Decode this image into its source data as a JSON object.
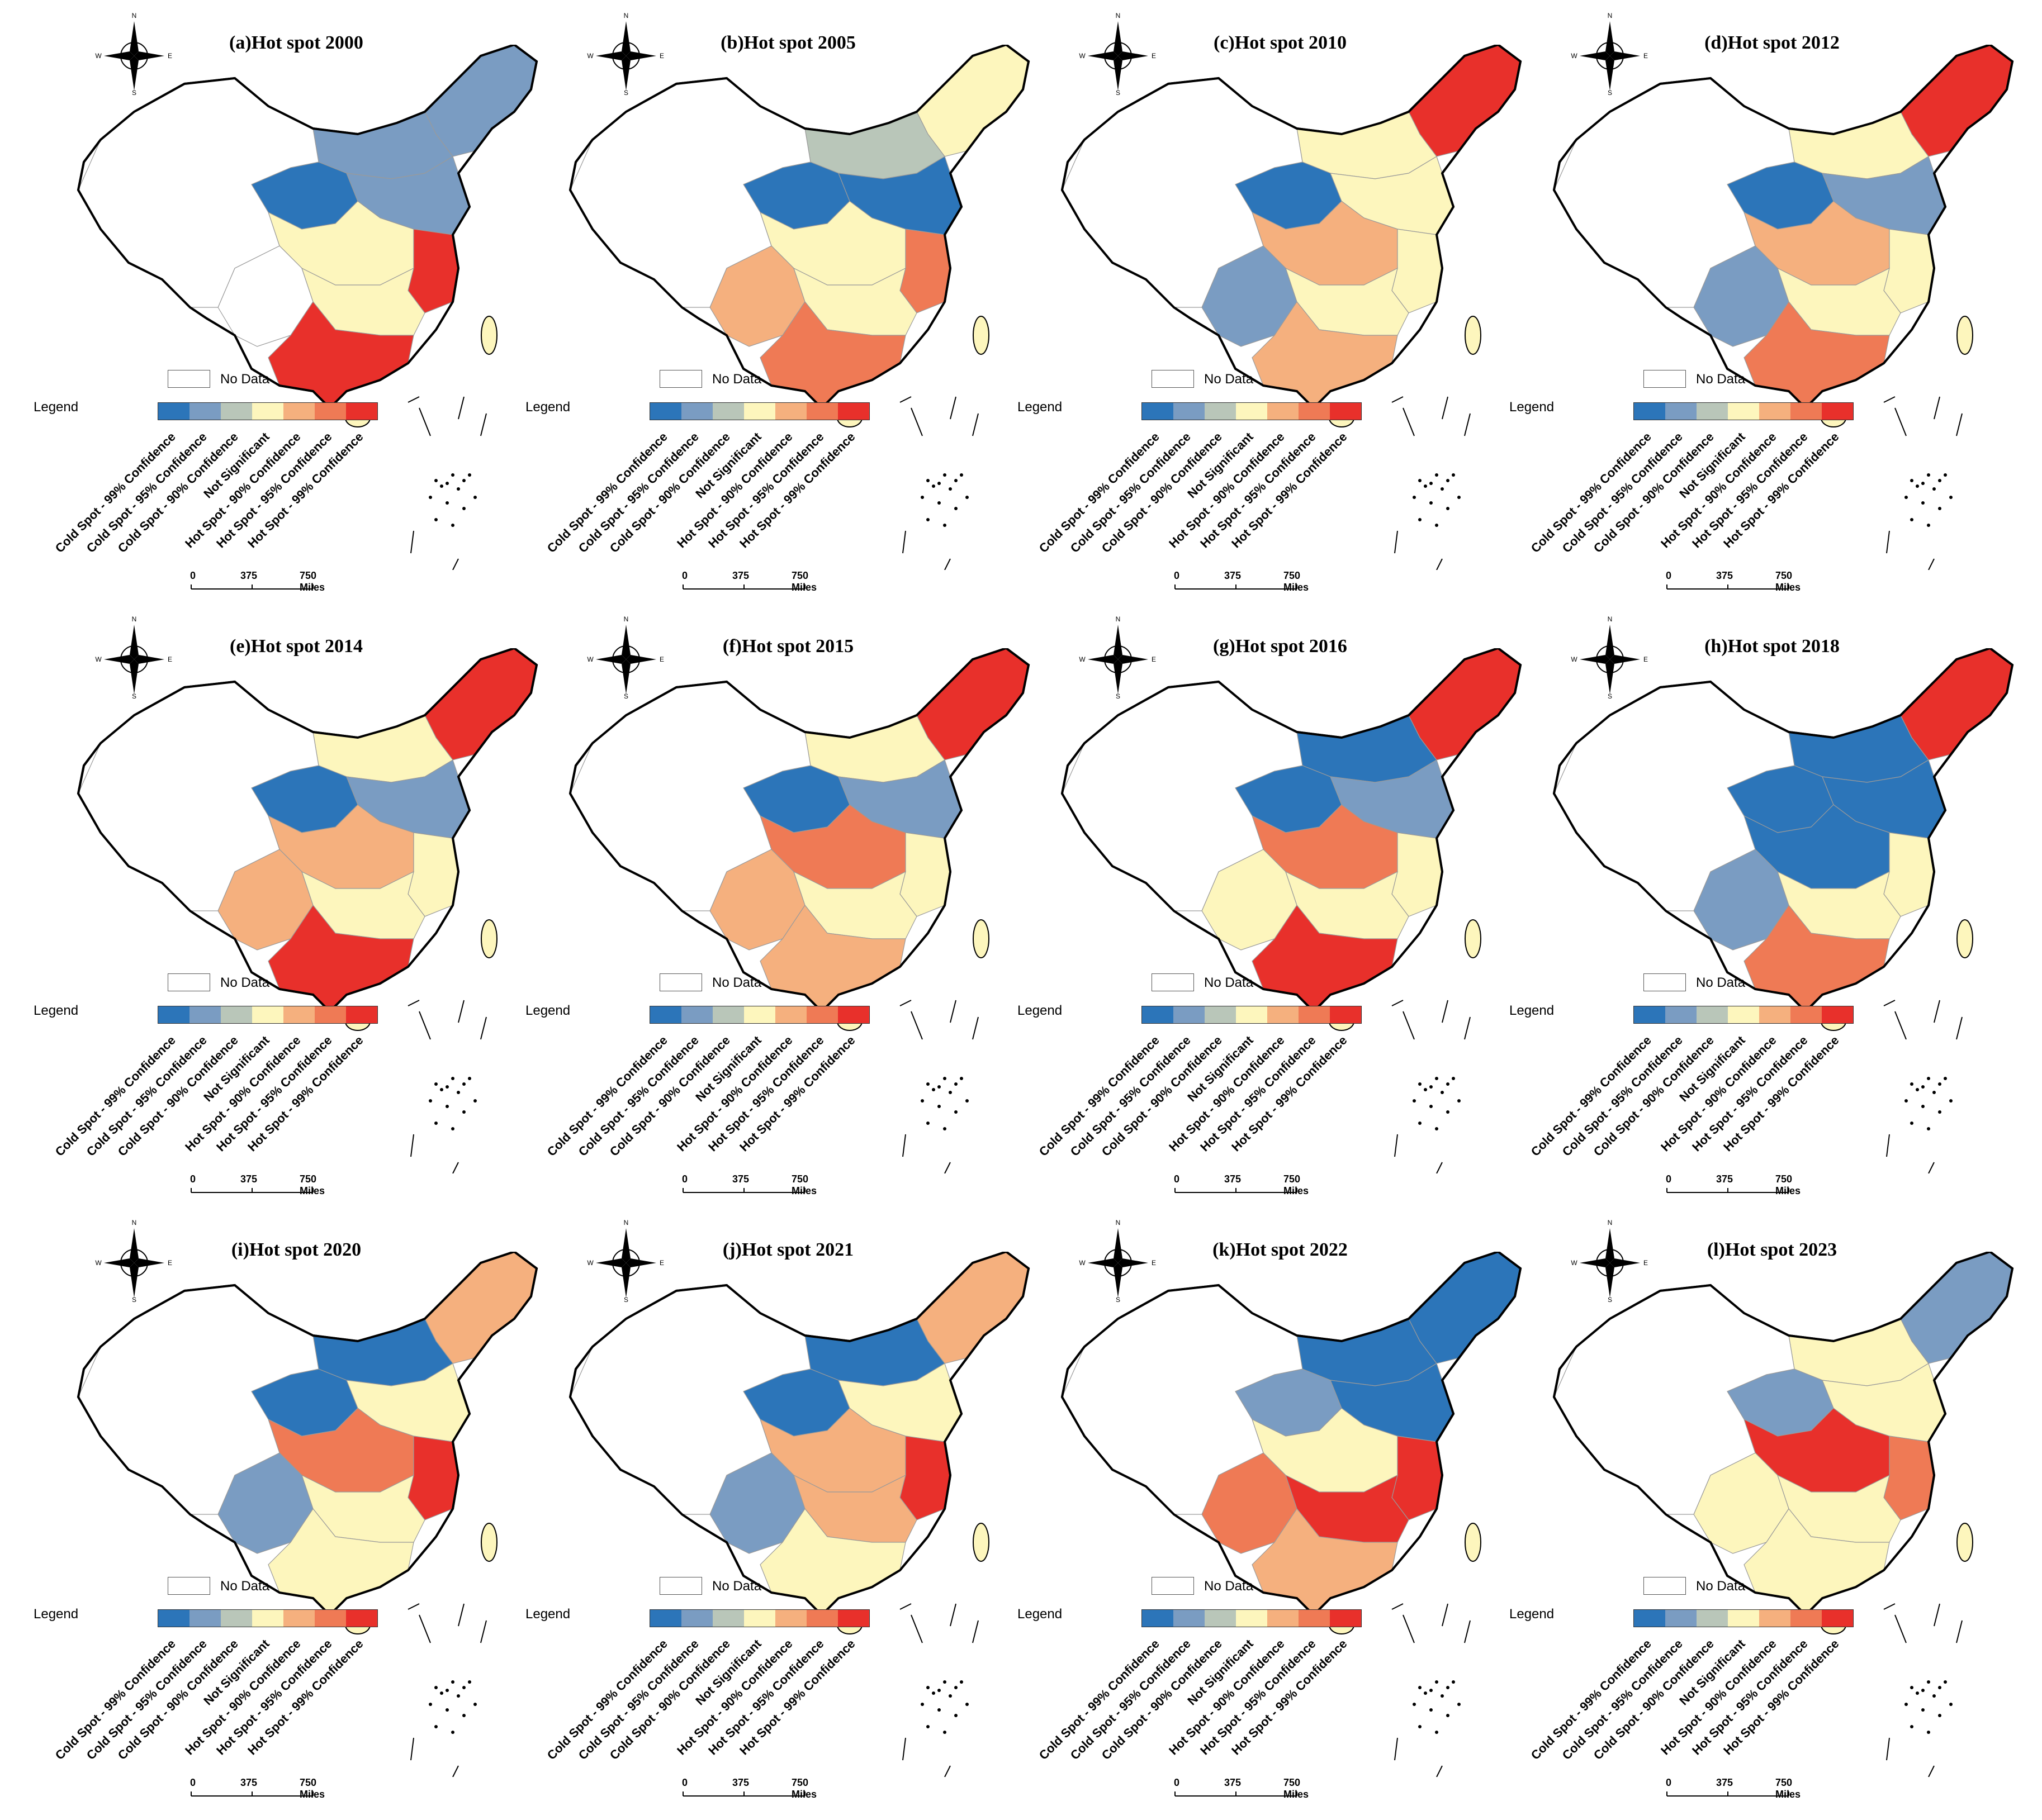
{
  "panels": [
    {
      "title": "(a)Hot spot 2000"
    },
    {
      "title": "(b)Hot spot 2005"
    },
    {
      "title": "(c)Hot spot 2010"
    },
    {
      "title": "(d)Hot spot 2012"
    },
    {
      "title": "(e)Hot spot 2014"
    },
    {
      "title": "(f)Hot spot 2015"
    },
    {
      "title": "(g)Hot spot 2016"
    },
    {
      "title": "(h)Hot spot 2018"
    },
    {
      "title": "(i)Hot spot 2020"
    },
    {
      "title": "(j)Hot spot 2021"
    },
    {
      "title": "(k)Hot spot 2022"
    },
    {
      "title": "(l)Hot spot 2023"
    }
  ],
  "legend": {
    "label": "Legend",
    "no_data": "No Data",
    "categories": [
      {
        "label": "Cold Spot - 99% Confidence",
        "color": "#2c75b9"
      },
      {
        "label": "Cold Spot - 95% Confidence",
        "color": "#7a9cc2"
      },
      {
        "label": "Cold Spot - 90% Confidence",
        "color": "#b9c6b9"
      },
      {
        "label": "Not Significant",
        "color": "#fdf6bd"
      },
      {
        "label": "Hot Spot - 90% Confidence",
        "color": "#f5b07e"
      },
      {
        "label": "Hot Spot - 95% Confidence",
        "color": "#ef7a55"
      },
      {
        "label": "Hot Spot - 99% Confidence",
        "color": "#e8302b"
      }
    ]
  },
  "scale_bar": {
    "ticks": [
      "0",
      "375",
      "750 Miles"
    ]
  },
  "compass": {
    "n": "N",
    "s": "S",
    "e": "E",
    "w": "W"
  }
}
